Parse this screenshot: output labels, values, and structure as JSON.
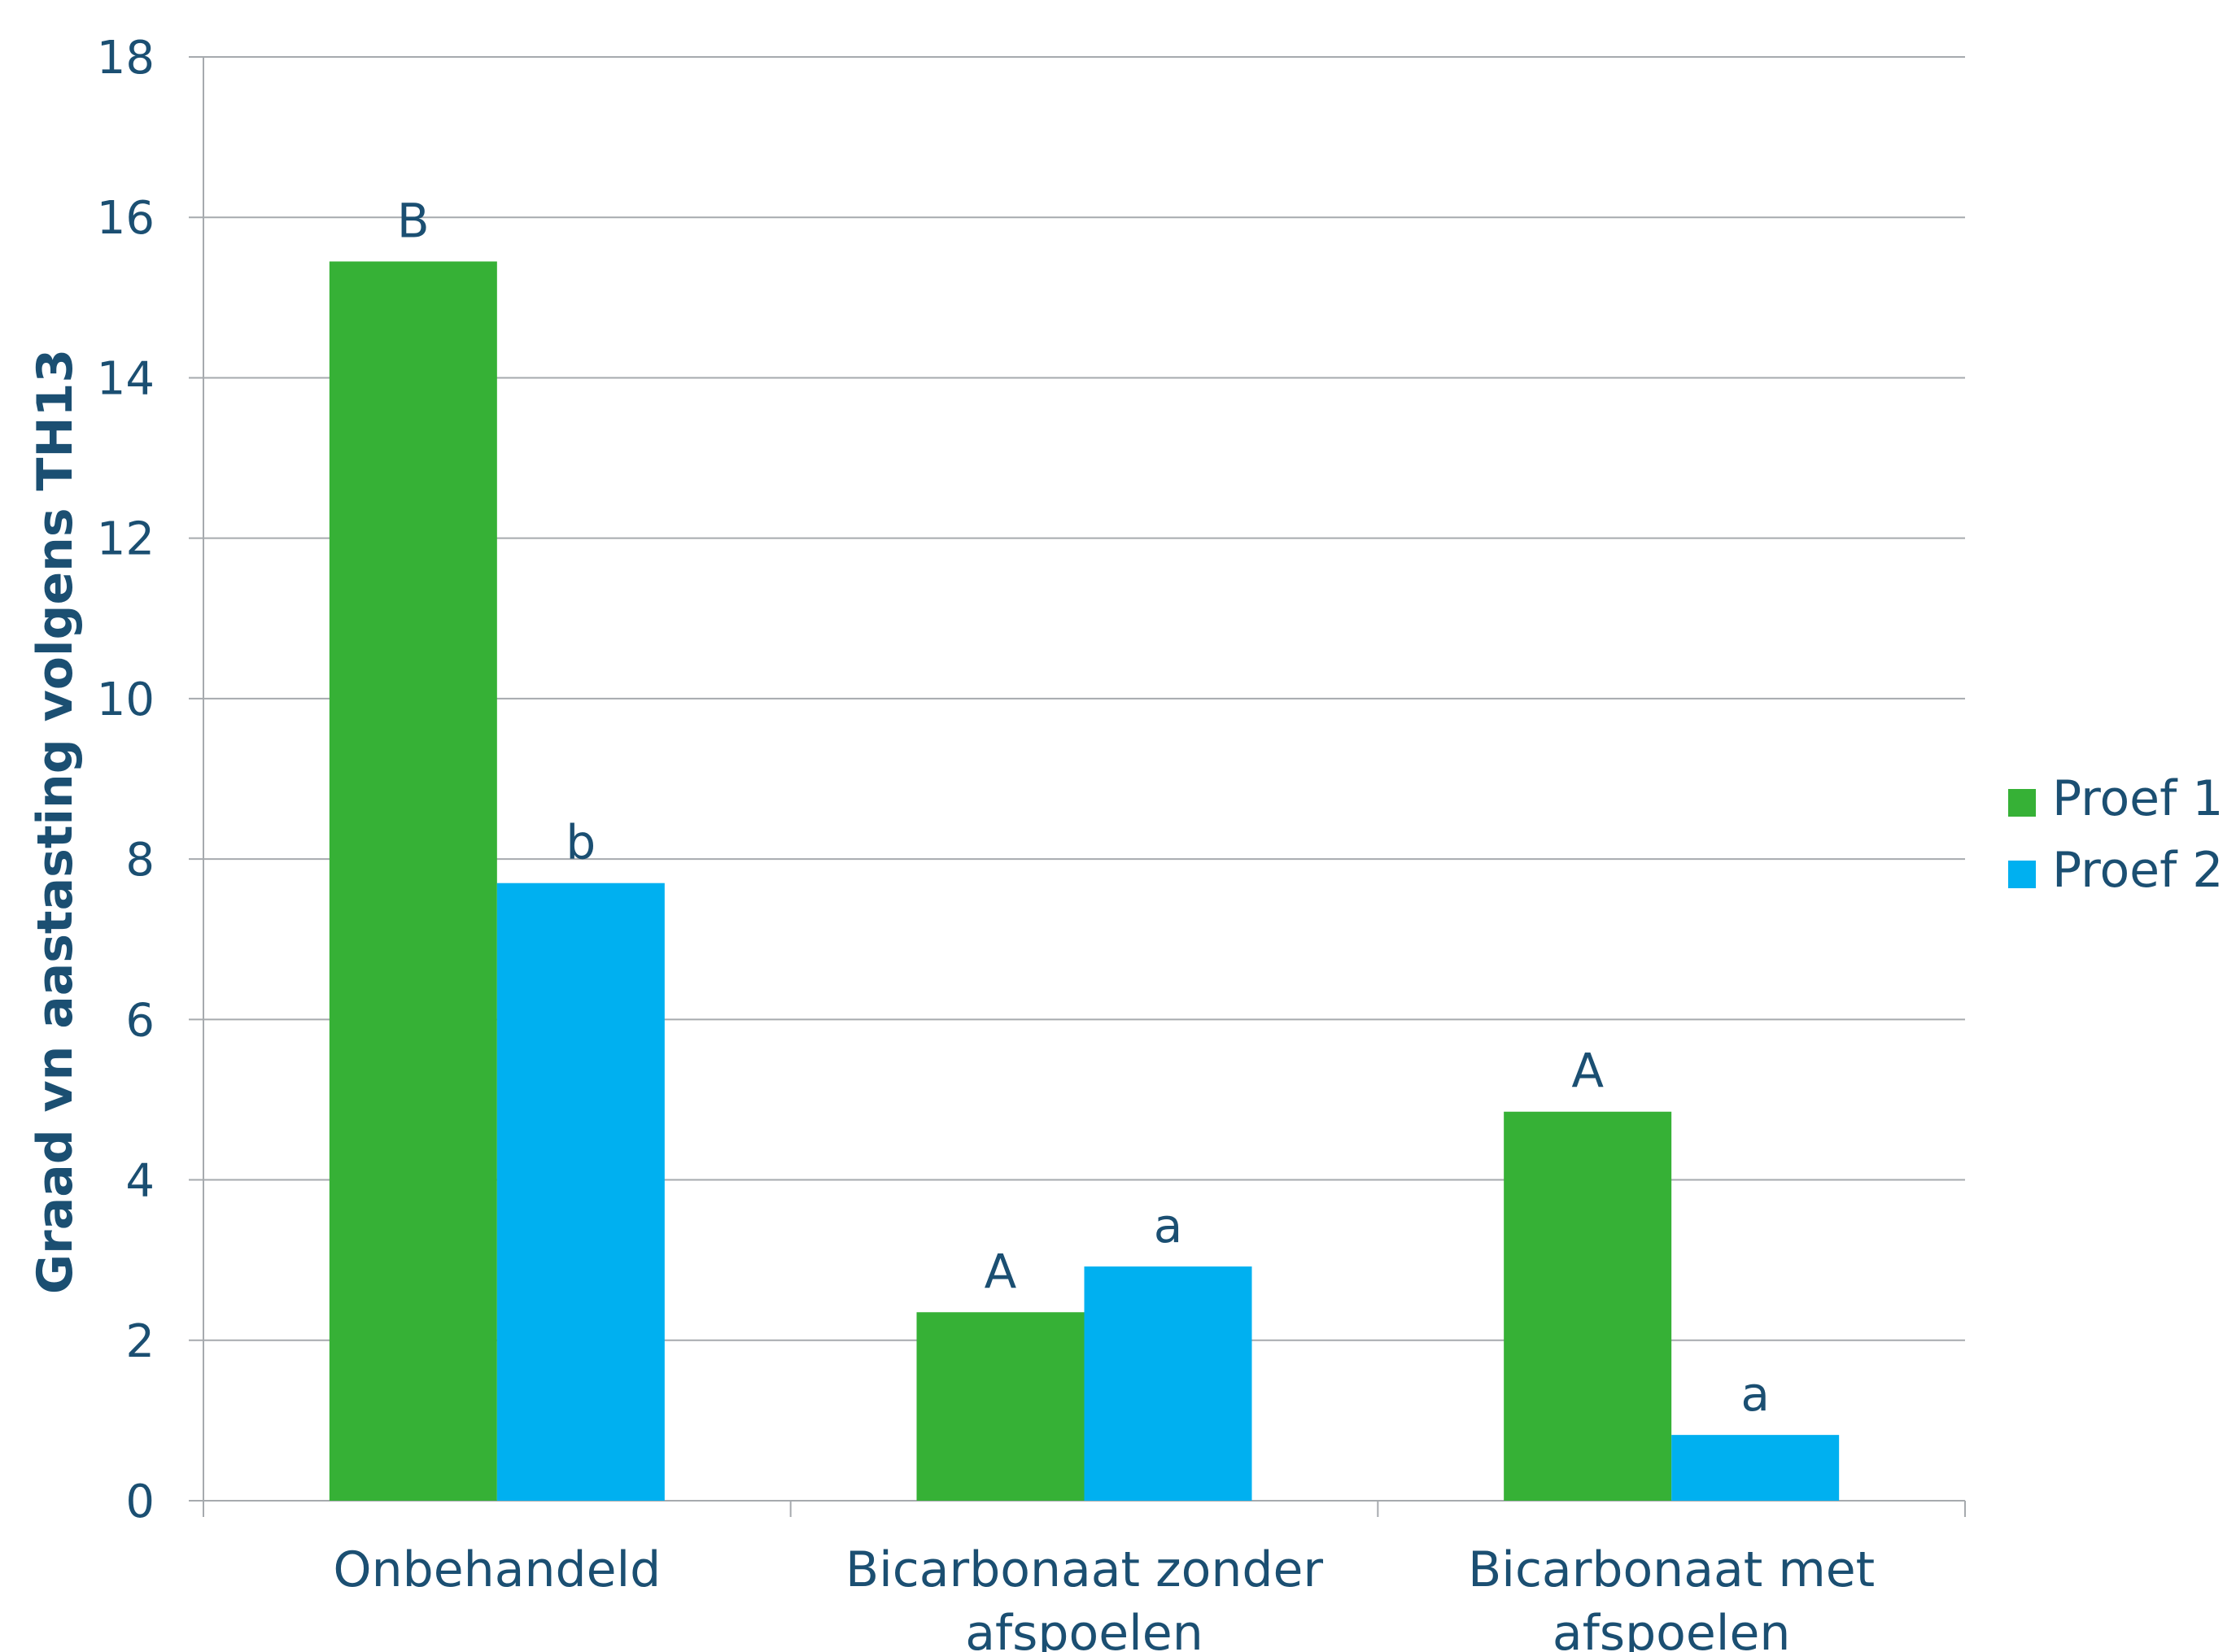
{
  "chart_data": {
    "type": "bar",
    "title": "",
    "xlabel": "",
    "ylabel": "Graad vn aastasting volgens TH13",
    "ylim": [
      0,
      18
    ],
    "yticks": [
      0,
      2,
      4,
      6,
      8,
      10,
      12,
      14,
      16,
      18
    ],
    "grid": true,
    "legend_position": "right",
    "categories": [
      [
        "Onbehandeld"
      ],
      [
        "Bicarbonaat zonder",
        "afspoelen"
      ],
      [
        "Bicarbonaat met",
        "afspoelen"
      ]
    ],
    "series": [
      {
        "name": "Proef 1",
        "color": "#36b136",
        "values": [
          15.45,
          2.35,
          4.85
        ],
        "labels": [
          "B",
          "A",
          "A"
        ]
      },
      {
        "name": "Proef 2",
        "color": "#00b0f0",
        "values": [
          7.7,
          2.92,
          0.82
        ],
        "labels": [
          "b",
          "a",
          "a"
        ]
      }
    ]
  }
}
